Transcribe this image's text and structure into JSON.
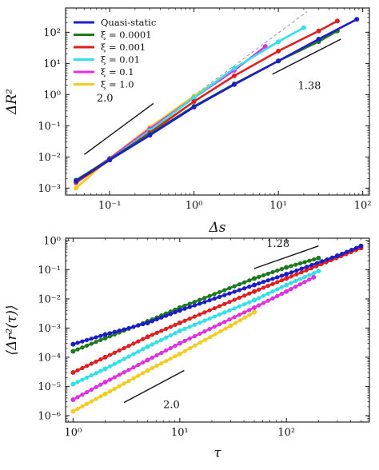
{
  "chart_data": [
    {
      "type": "line",
      "xlabel": "Δs",
      "ylabel": "ΔR²",
      "x_scale": "log",
      "y_scale": "log",
      "xlim": [
        0.03,
        120
      ],
      "ylim": [
        0.0006,
        600
      ],
      "x_ticks": [
        {
          "value": 0.1,
          "label": "10⁻¹"
        },
        {
          "value": 1,
          "label": "10⁰"
        },
        {
          "value": 10,
          "label": "10¹"
        },
        {
          "value": 100,
          "label": "10²"
        }
      ],
      "y_ticks": [
        {
          "value": 0.001,
          "label": "10⁻³"
        },
        {
          "value": 0.01,
          "label": "10⁻²"
        },
        {
          "value": 0.1,
          "label": "10⁻¹"
        },
        {
          "value": 1,
          "label": "10⁰"
        },
        {
          "value": 10,
          "label": "10¹"
        },
        {
          "value": 100,
          "label": "10²"
        }
      ],
      "legend": {
        "placement": "top-left",
        "entries": [
          "Quasi-static",
          "ξ = 0.0001",
          "ξ = 0.001",
          "ξ = 0.01",
          "ξ = 0.1",
          "ξ = 1.0"
        ]
      },
      "series": [
        {
          "name": "Quasi-static",
          "color": "#1c1cc8",
          "x": [
            0.04,
            0.1,
            0.3,
            1,
            3,
            10,
            30,
            85
          ],
          "y": [
            0.0017,
            0.008,
            0.05,
            0.4,
            2.1,
            12,
            60,
            260
          ]
        },
        {
          "name": "ξ = 0.0001",
          "color": "#1f7a1f",
          "x": [
            0.04,
            0.1,
            0.3,
            1,
            3,
            10,
            30,
            50
          ],
          "y": [
            0.0018,
            0.0085,
            0.055,
            0.42,
            2.2,
            12,
            50,
            110
          ]
        },
        {
          "name": "ξ = 0.001",
          "color": "#dd2020",
          "x": [
            0.04,
            0.1,
            0.3,
            1,
            3,
            10,
            30,
            50
          ],
          "y": [
            0.0015,
            0.008,
            0.06,
            0.6,
            4,
            25,
            110,
            230
          ]
        },
        {
          "name": "ξ = 0.01",
          "color": "#33e0e8",
          "x": [
            0.04,
            0.1,
            0.3,
            1,
            3,
            10,
            20
          ],
          "y": [
            0.0015,
            0.008,
            0.07,
            0.8,
            7,
            50,
            140
          ]
        },
        {
          "name": "ξ = 0.1",
          "color": "#e030e0",
          "x": [
            0.04,
            0.1,
            0.3,
            1,
            3,
            7
          ],
          "y": [
            0.0017,
            0.009,
            0.08,
            0.8,
            6,
            35
          ]
        },
        {
          "name": "ξ = 1.0",
          "color": "#f2cc22",
          "x": [
            0.04,
            0.1,
            0.3,
            1,
            2
          ],
          "y": [
            0.001,
            0.009,
            0.09,
            0.9,
            3
          ]
        }
      ],
      "reference_lines": [
        {
          "label": "2.0",
          "from": [
            0.05,
            0.012
          ],
          "to": [
            0.33,
            0.52
          ],
          "label_at": [
            0.07,
            0.6
          ]
        },
        {
          "label": "1.38",
          "from": [
            8.5,
            4.5
          ],
          "to": [
            55,
            60
          ],
          "label_at": [
            17,
            1.5
          ]
        }
      ],
      "guide_line": {
        "style": "dashed",
        "color": "#999999",
        "from": [
          0.04,
          0.0015
        ],
        "to": [
          22,
          460
        ]
      }
    },
    {
      "type": "line",
      "xlabel": "τ",
      "ylabel": "⟨Δr²(τ)⟩",
      "x_scale": "log",
      "y_scale": "log",
      "xlim": [
        0.85,
        600
      ],
      "ylim": [
        6e-07,
        1.2
      ],
      "x_ticks": [
        {
          "value": 1,
          "label": "10⁰"
        },
        {
          "value": 10,
          "label": "10¹"
        },
        {
          "value": 100,
          "label": "10²"
        }
      ],
      "y_ticks": [
        {
          "value": 1e-06,
          "label": "10⁻⁶"
        },
        {
          "value": 1e-05,
          "label": "10⁻⁵"
        },
        {
          "value": 0.0001,
          "label": "10⁻⁴"
        },
        {
          "value": 0.001,
          "label": "10⁻³"
        },
        {
          "value": 0.01,
          "label": "10⁻²"
        },
        {
          "value": 0.1,
          "label": "10⁻¹"
        },
        {
          "value": 1,
          "label": "10⁰"
        }
      ],
      "series": [
        {
          "name": "Quasi-static",
          "color": "#1c1cc8",
          "x": [
            1,
            2,
            5,
            10,
            50,
            100,
            300,
            500
          ],
          "y": [
            0.00028,
            0.0006,
            0.0015,
            0.004,
            0.03,
            0.07,
            0.3,
            0.65
          ]
        },
        {
          "name": "ξ = 0.0001",
          "color": "#1f7a1f",
          "x": [
            1,
            2,
            5,
            10,
            50,
            100,
            200
          ],
          "y": [
            0.00016,
            0.00045,
            0.0017,
            0.005,
            0.05,
            0.12,
            0.25
          ]
        },
        {
          "name": "ξ = 0.001",
          "color": "#dd2020",
          "x": [
            1,
            2,
            5,
            10,
            50,
            100,
            500
          ],
          "y": [
            3e-05,
            0.0001,
            0.0005,
            0.0015,
            0.018,
            0.05,
            0.55
          ]
        },
        {
          "name": "ξ = 0.01",
          "color": "#33e0e8",
          "x": [
            1,
            2,
            5,
            10,
            50,
            100,
            200
          ],
          "y": [
            1.2e-05,
            4e-05,
            0.00023,
            0.0008,
            0.009,
            0.03,
            0.09
          ]
        },
        {
          "name": "ξ = 0.1",
          "color": "#e030e0",
          "x": [
            1,
            2,
            5,
            10,
            50,
            100,
            180
          ],
          "y": [
            3.5e-06,
            1.4e-05,
            8e-05,
            0.0003,
            0.005,
            0.018,
            0.055
          ]
        },
        {
          "name": "ξ = 1.0",
          "color": "#f2cc22",
          "x": [
            1,
            2,
            5,
            10,
            30,
            50
          ],
          "y": [
            1.4e-06,
            5.5e-06,
            3.5e-05,
            0.00013,
            0.0012,
            0.0035
          ]
        }
      ],
      "reference_lines": [
        {
          "label": "2.0",
          "from": [
            3,
            2.8e-06
          ],
          "to": [
            11,
            3.5e-05
          ],
          "label_at": [
            7,
            1.8e-06
          ]
        },
        {
          "label": "1.28",
          "from": [
            50,
            0.11
          ],
          "to": [
            200,
            0.65
          ],
          "label_at": [
            65,
            0.6
          ]
        }
      ]
    }
  ]
}
